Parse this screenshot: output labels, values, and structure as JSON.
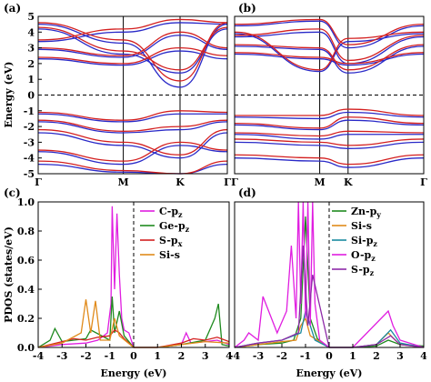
{
  "chart_data": [
    {
      "panel": "(a)",
      "type": "line",
      "ylabel": "Energy (eV)",
      "ylim": [
        -5,
        5
      ],
      "y_ticks": [
        "5",
        "4",
        "3",
        "2",
        "1",
        "0",
        "-1",
        "-2",
        "-3",
        "-4",
        "-5"
      ],
      "x_ticks": [
        "Γ",
        "M",
        "K",
        "Γ"
      ],
      "series_colors": {
        "spin_up": "#d42020",
        "spin_down": "#2a2ac8"
      },
      "fermi_level": 0,
      "bands": {
        "x": [
          0,
          0.45,
          0.75,
          1
        ],
        "spin_up": [
          [
            3.5,
            4.2,
            4.8,
            4.6
          ],
          [
            3.0,
            2.5,
            4.0,
            3.0
          ],
          [
            2.4,
            2.0,
            3.0,
            2.5
          ],
          [
            4.6,
            3.5,
            0.9,
            4.6
          ],
          [
            4.3,
            2.8,
            1.6,
            4.3
          ],
          [
            -1.1,
            -1.6,
            -1.0,
            -1.1
          ],
          [
            -1.6,
            -2.3,
            -2.0,
            -1.6
          ],
          [
            -2.2,
            -3.0,
            -3.8,
            -2.2
          ],
          [
            -3.5,
            -4.2,
            -3.0,
            -3.5
          ],
          [
            -4.2,
            -4.8,
            -5.0,
            -4.2
          ]
        ],
        "spin_down": [
          [
            3.4,
            4.0,
            4.6,
            4.5
          ],
          [
            2.9,
            2.4,
            3.8,
            2.9
          ],
          [
            2.3,
            1.9,
            2.8,
            2.3
          ],
          [
            4.5,
            3.3,
            0.5,
            4.5
          ],
          [
            4.2,
            2.6,
            1.4,
            4.2
          ],
          [
            -1.2,
            -1.7,
            -1.2,
            -1.2
          ],
          [
            -1.7,
            -2.4,
            -2.2,
            -1.7
          ],
          [
            -2.4,
            -3.2,
            -4.0,
            -2.4
          ],
          [
            -3.6,
            -4.4,
            -3.2,
            -3.6
          ],
          [
            -4.4,
            -4.9,
            -5.0,
            -4.4
          ]
        ]
      }
    },
    {
      "panel": "(b)",
      "type": "line",
      "ylim": [
        -5,
        5
      ],
      "x_ticks": [
        "Γ",
        "M",
        "K",
        "Γ"
      ],
      "series_colors": {
        "spin_up": "#d42020",
        "spin_down": "#2a2ac8"
      },
      "fermi_level": 0,
      "bands": {
        "x": [
          0,
          0.45,
          0.6,
          1
        ],
        "spin_up": [
          [
            4.5,
            4.8,
            3.2,
            4.5
          ],
          [
            3.8,
            4.2,
            2.2,
            3.8
          ],
          [
            3.2,
            3.0,
            1.6,
            3.2
          ],
          [
            2.7,
            2.4,
            2.0,
            2.7
          ],
          [
            4.0,
            1.6,
            3.6,
            4.0
          ],
          [
            -1.3,
            -1.3,
            -0.9,
            -1.3
          ],
          [
            -1.8,
            -2.1,
            -1.4,
            -1.8
          ],
          [
            -2.4,
            -2.6,
            -2.3,
            -2.4
          ],
          [
            -2.8,
            -3.0,
            -3.2,
            -2.8
          ],
          [
            -3.8,
            -4.0,
            -4.4,
            -3.8
          ]
        ],
        "spin_down": [
          [
            4.4,
            4.7,
            3.0,
            4.4
          ],
          [
            3.7,
            4.0,
            2.0,
            3.7
          ],
          [
            3.1,
            2.9,
            1.4,
            3.1
          ],
          [
            2.6,
            2.3,
            1.9,
            2.6
          ],
          [
            3.9,
            1.5,
            3.4,
            3.9
          ],
          [
            -1.4,
            -1.5,
            -1.1,
            -1.4
          ],
          [
            -1.9,
            -2.2,
            -1.6,
            -1.9
          ],
          [
            -2.5,
            -2.8,
            -2.5,
            -2.5
          ],
          [
            -3.0,
            -3.2,
            -3.4,
            -3.0
          ],
          [
            -4.0,
            -4.2,
            -4.6,
            -4.0
          ]
        ]
      }
    },
    {
      "panel": "(c)",
      "type": "line",
      "ylabel": "PDOS (states/eV)",
      "xlabel": "Energy (eV)",
      "xlim": [
        -4,
        4
      ],
      "ylim": [
        0,
        1.0
      ],
      "x_ticks": [
        "-4",
        "-3",
        "-2",
        "-1",
        "0",
        "1",
        "2",
        "3",
        "4"
      ],
      "y_ticks": [
        "1.0",
        "0.8",
        "0.6",
        "0.4",
        "0.2",
        "0.0"
      ],
      "fermi_level": 0,
      "series": [
        {
          "name_main": "C-p",
          "name_sub": "z",
          "color": "#e01ee0",
          "x": [
            -4,
            -3,
            -2,
            -1.5,
            -1.1,
            -0.95,
            -0.9,
            -0.8,
            -0.7,
            -0.6,
            -0.5,
            -0.4,
            -0.2,
            0,
            1,
            2,
            2.2,
            2.4,
            3,
            3.5,
            4
          ],
          "y": [
            0.0,
            0.02,
            0.03,
            0.05,
            0.1,
            0.3,
            0.97,
            0.4,
            0.92,
            0.5,
            0.2,
            0.12,
            0.1,
            0.0,
            0.0,
            0.02,
            0.1,
            0.03,
            0.04,
            0.05,
            0.02
          ]
        },
        {
          "name_main": "Ge-p",
          "name_sub": "z",
          "color": "#1f8a1f",
          "x": [
            -4,
            -3.5,
            -3.3,
            -3.0,
            -2.5,
            -2.0,
            -1.8,
            -1.0,
            -0.9,
            -0.8,
            -0.6,
            -0.4,
            0,
            1,
            2,
            3,
            3.4,
            3.55,
            3.7,
            4
          ],
          "y": [
            0.0,
            0.05,
            0.13,
            0.04,
            0.05,
            0.06,
            0.12,
            0.05,
            0.35,
            0.1,
            0.25,
            0.08,
            0.0,
            0.0,
            0.02,
            0.05,
            0.2,
            0.3,
            0.02,
            0.01
          ]
        },
        {
          "name_main": "S-p",
          "name_sub": "x",
          "color": "#d42020",
          "x": [
            -4,
            -3,
            -2.5,
            -2,
            -1.5,
            -1,
            -0.8,
            -0.6,
            -0.4,
            0,
            1,
            2,
            2.5,
            3,
            3.5,
            4
          ],
          "y": [
            0.0,
            0.04,
            0.06,
            0.05,
            0.07,
            0.08,
            0.12,
            0.1,
            0.06,
            0.0,
            0.0,
            0.03,
            0.06,
            0.05,
            0.07,
            0.04
          ]
        },
        {
          "name_main": "Si-s",
          "name_sub": "",
          "color": "#e08a1a",
          "x": [
            -4,
            -3,
            -2.2,
            -2.0,
            -1.8,
            -1.6,
            -1.4,
            -1.0,
            -0.8,
            -0.6,
            0,
            1,
            2,
            3,
            4
          ],
          "y": [
            0.0,
            0.03,
            0.1,
            0.33,
            0.1,
            0.32,
            0.05,
            0.05,
            0.2,
            0.08,
            0.0,
            0.0,
            0.02,
            0.04,
            0.03
          ]
        }
      ]
    },
    {
      "panel": "(d)",
      "type": "line",
      "xlabel": "Energy (eV)",
      "xlim": [
        -4,
        4
      ],
      "ylim": [
        0,
        1.0
      ],
      "x_ticks": [
        "-4",
        "-3",
        "-2",
        "-1",
        "0",
        "1",
        "2",
        "3",
        "4"
      ],
      "fermi_level": 0,
      "series": [
        {
          "name_main": "Zn-p",
          "name_sub": "y",
          "color": "#1f8a1f",
          "x": [
            -4,
            -3,
            -2,
            -1.5,
            -1.2,
            -1.0,
            -0.8,
            -0.5,
            0,
            1,
            2,
            2.5,
            3,
            4
          ],
          "y": [
            0.0,
            0.02,
            0.03,
            0.05,
            0.2,
            0.9,
            0.2,
            0.06,
            0.0,
            0.0,
            0.01,
            0.05,
            0.02,
            0.01
          ]
        },
        {
          "name_main": "Si-s",
          "name_sub": "",
          "color": "#e08a1a",
          "x": [
            -4,
            -3,
            -2,
            -1.4,
            -1.2,
            -1.0,
            -0.8,
            0,
            1,
            2,
            2.5,
            2.8,
            3,
            4
          ],
          "y": [
            0.0,
            0.02,
            0.04,
            0.05,
            0.15,
            0.2,
            0.08,
            0.0,
            0.0,
            0.02,
            0.1,
            0.05,
            0.02,
            0.0
          ]
        },
        {
          "name_main": "Si-p",
          "name_sub": "z",
          "color": "#1a8aa0",
          "x": [
            -4,
            -3,
            -2,
            -1.2,
            -1.0,
            -0.8,
            -0.6,
            0,
            1,
            2,
            2.6,
            3,
            4
          ],
          "y": [
            0.0,
            0.03,
            0.05,
            0.1,
            0.25,
            0.15,
            0.05,
            0.0,
            0.0,
            0.02,
            0.12,
            0.03,
            0.0
          ]
        },
        {
          "name_main": "O-p",
          "name_sub": "z",
          "color": "#e01ee0",
          "x": [
            -4,
            -3.6,
            -3.4,
            -3.0,
            -2.8,
            -2.2,
            -1.8,
            -1.6,
            -1.4,
            -1.3,
            -1.2,
            -1.1,
            -1.0,
            -0.9,
            -0.8,
            -0.7,
            -0.6,
            -0.4,
            0,
            1,
            2.5,
            2.7,
            3,
            4
          ],
          "y": [
            0.0,
            0.05,
            0.1,
            0.05,
            0.35,
            0.1,
            0.25,
            0.7,
            0.2,
            1.0,
            0.3,
            1.0,
            0.2,
            1.0,
            0.15,
            1.0,
            0.3,
            0.05,
            0.0,
            0.0,
            0.25,
            0.15,
            0.05,
            0.0
          ]
        },
        {
          "name_main": "S-p",
          "name_sub": "z",
          "color": "#8e2aa8",
          "x": [
            -4,
            -3,
            -2,
            -1.3,
            -1.1,
            -0.9,
            -0.7,
            0,
            1,
            2,
            2.6,
            3,
            4
          ],
          "y": [
            0.0,
            0.03,
            0.05,
            0.1,
            0.7,
            0.15,
            0.5,
            0.0,
            0.0,
            0.02,
            0.08,
            0.02,
            0.0
          ]
        }
      ]
    }
  ]
}
